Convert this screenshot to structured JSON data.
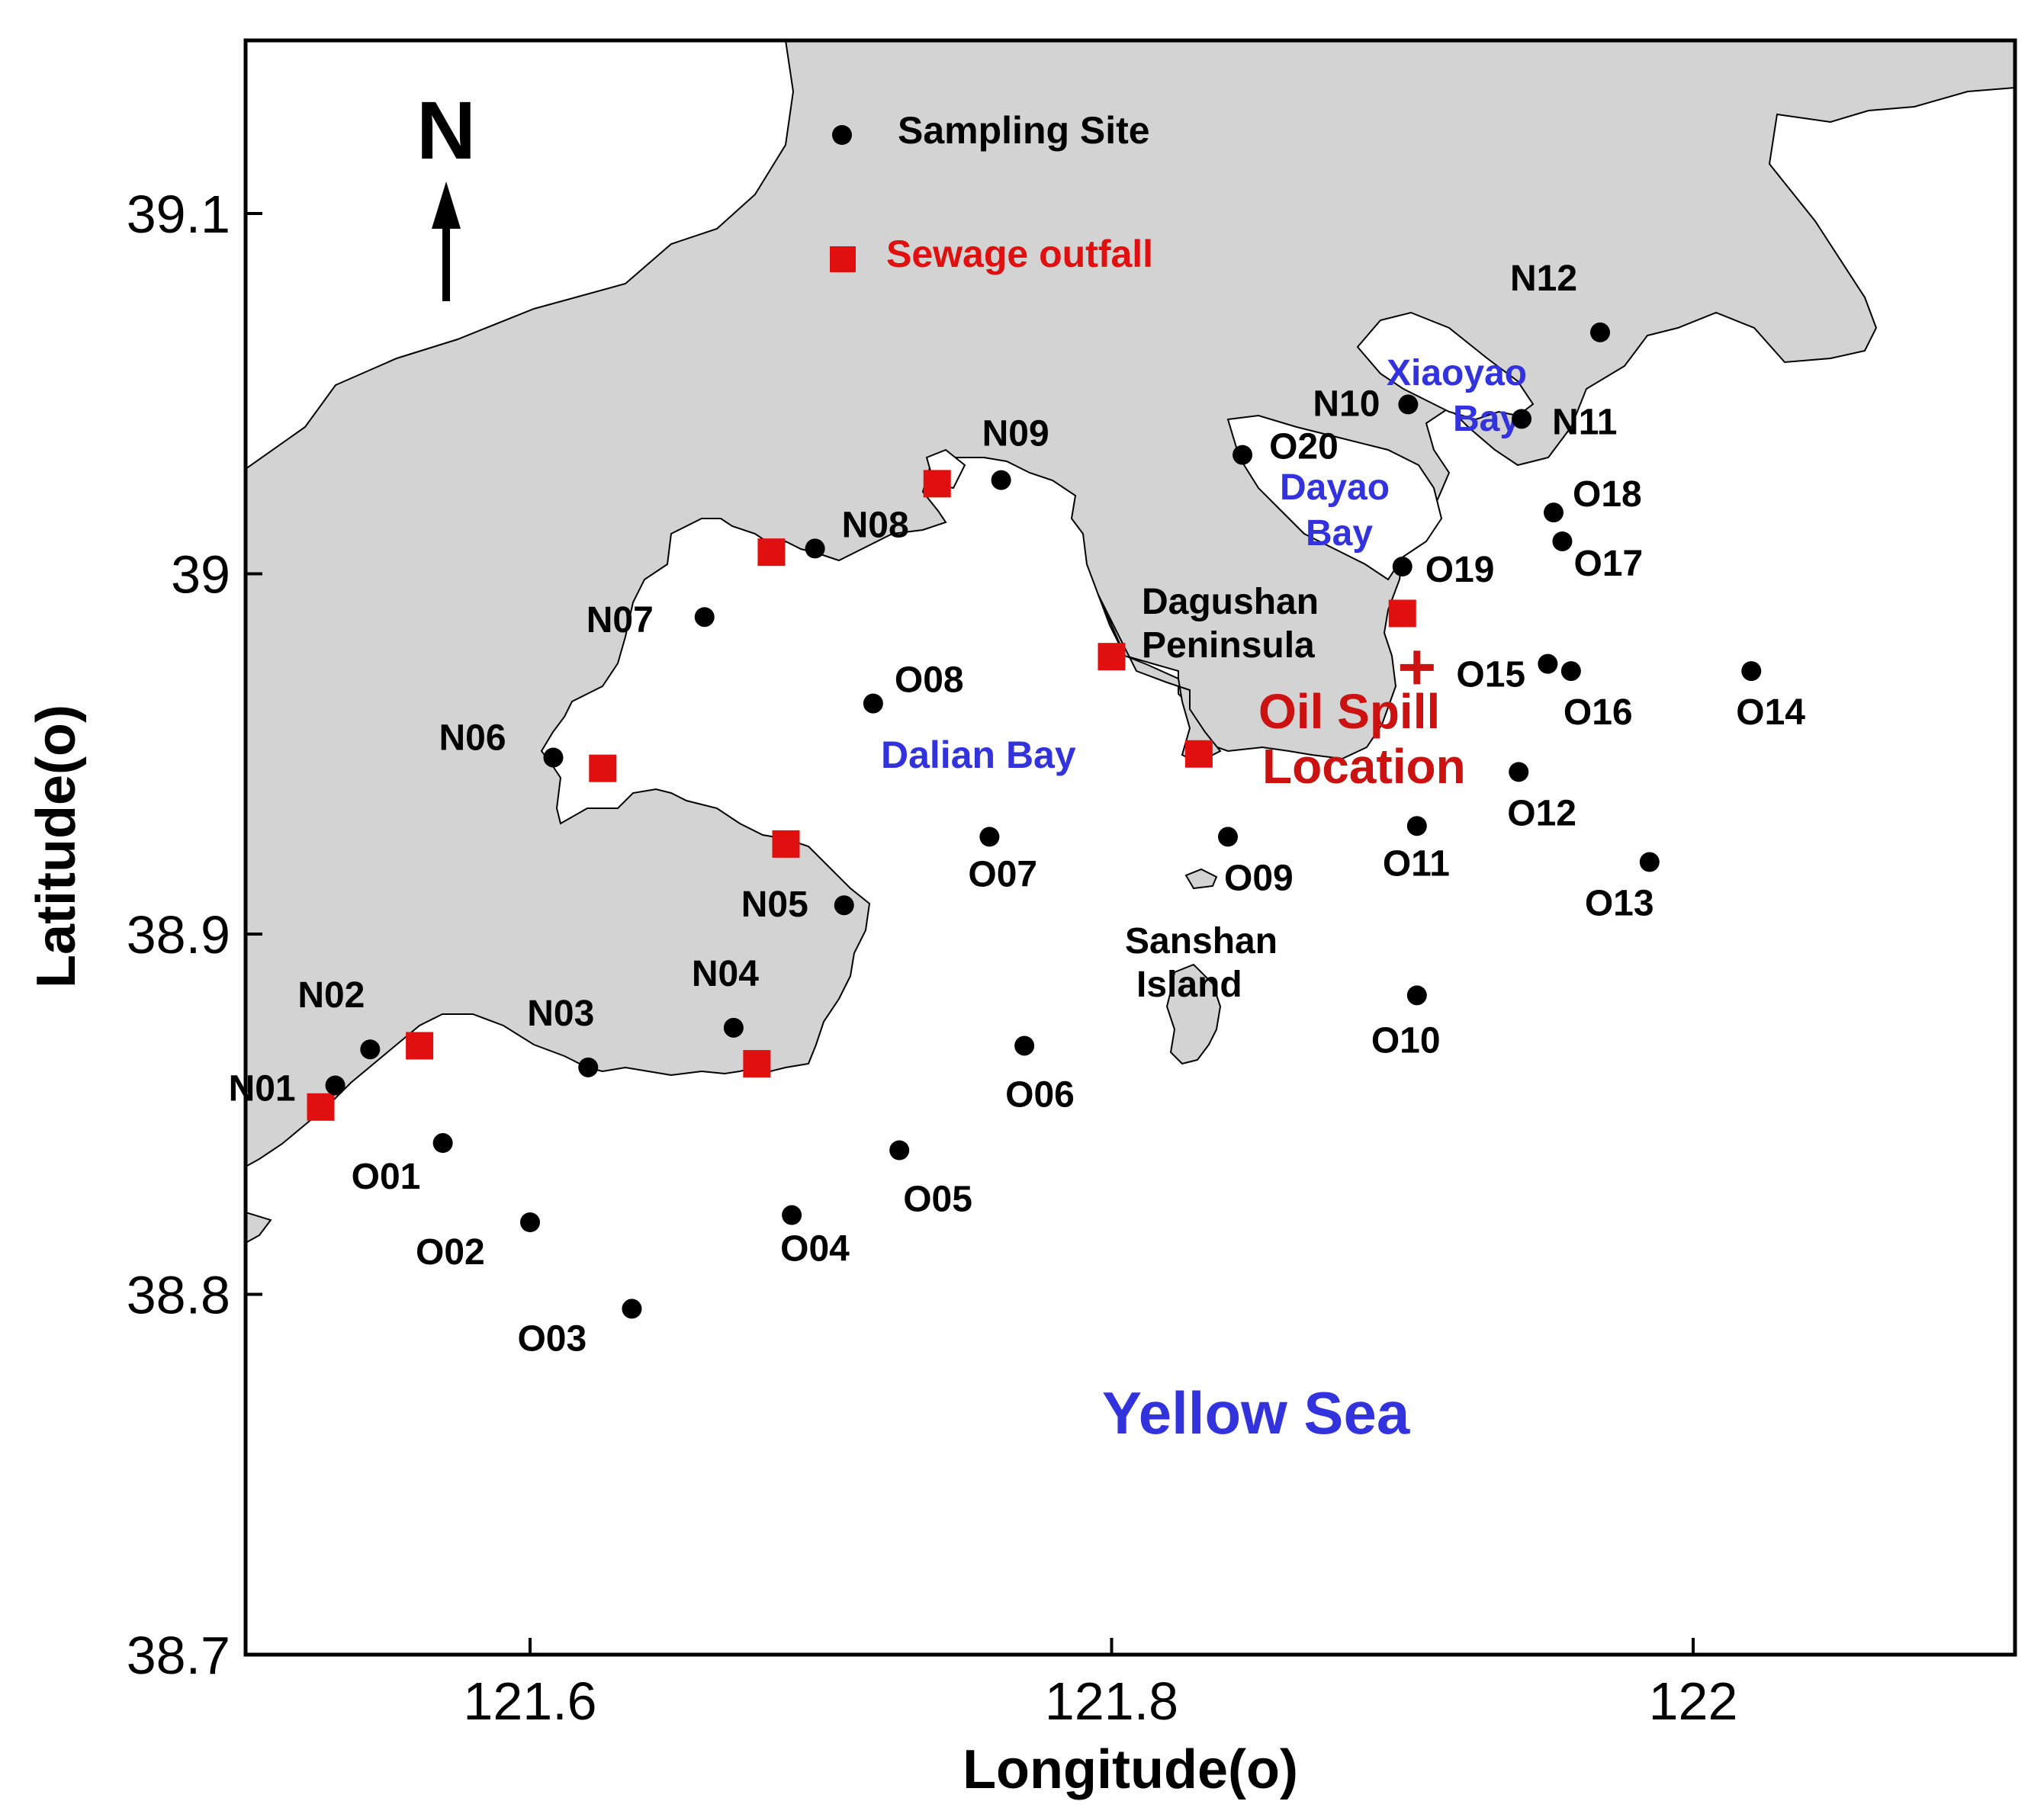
{
  "map": {
    "x_ticks": [
      {
        "value": 121.6,
        "label": "121.6"
      },
      {
        "value": 121.8,
        "label": "121.8"
      },
      {
        "value": 122.0,
        "label": "122"
      }
    ],
    "y_ticks": [
      {
        "value": 38.7,
        "label": "38.7"
      },
      {
        "value": 38.8,
        "label": "38.8"
      },
      {
        "value": 38.9,
        "label": "38.9"
      },
      {
        "value": 39.0,
        "label": "39"
      },
      {
        "value": 39.1,
        "label": "39.1"
      }
    ],
    "xlabel": "Longitude(o)",
    "ylabel": "Latitude(o)",
    "north_label": "N",
    "colors": {
      "land": "#d3d3d3",
      "sea": "#ffffff",
      "site": "#000000",
      "outfall": "#e01010",
      "spill": "#cc1111",
      "place": "#3333dd"
    }
  },
  "legend": {
    "sampling_site": "Sampling Site",
    "sewage_outfall": "Sewage outfall"
  },
  "place_names": {
    "dalian_bay": "Dalian Bay",
    "xiaoyao_bay_1": "Xiaoyao",
    "xiaoyao_bay_2": "Bay",
    "dayao_bay_1": "Dayao",
    "dayao_bay_2": "Bay",
    "yellow_sea": "Yellow Sea",
    "dagushan_1": "Dagushan",
    "dagushan_2": "Peninsula",
    "sanshan_1": "Sanshan",
    "sanshan_2": "Island",
    "oil_spill_1": "Oil Spill",
    "oil_spill_2": "Location"
  },
  "sites": [
    {
      "name": "N01",
      "lon": 121.533,
      "lat": 38.858
    },
    {
      "name": "N02",
      "lon": 121.545,
      "lat": 38.868
    },
    {
      "name": "N03",
      "lon": 121.62,
      "lat": 38.863
    },
    {
      "name": "N04",
      "lon": 121.67,
      "lat": 38.874
    },
    {
      "name": "N05",
      "lon": 121.708,
      "lat": 38.908
    },
    {
      "name": "N06",
      "lon": 121.608,
      "lat": 38.949
    },
    {
      "name": "N07",
      "lon": 121.66,
      "lat": 38.988
    },
    {
      "name": "N08",
      "lon": 121.698,
      "lat": 39.007
    },
    {
      "name": "N09",
      "lon": 121.762,
      "lat": 39.026
    },
    {
      "name": "N10",
      "lon": 121.902,
      "lat": 39.047
    },
    {
      "name": "N11",
      "lon": 121.941,
      "lat": 39.043
    },
    {
      "name": "N12",
      "lon": 121.968,
      "lat": 39.067
    },
    {
      "name": "O01",
      "lon": 121.57,
      "lat": 38.842
    },
    {
      "name": "O02",
      "lon": 121.6,
      "lat": 38.82
    },
    {
      "name": "O03",
      "lon": 121.635,
      "lat": 38.796
    },
    {
      "name": "O04",
      "lon": 121.69,
      "lat": 38.822
    },
    {
      "name": "O05",
      "lon": 121.727,
      "lat": 38.84
    },
    {
      "name": "O06",
      "lon": 121.77,
      "lat": 38.869
    },
    {
      "name": "O07",
      "lon": 121.758,
      "lat": 38.927
    },
    {
      "name": "O08",
      "lon": 121.718,
      "lat": 38.964
    },
    {
      "name": "O09",
      "lon": 121.84,
      "lat": 38.927
    },
    {
      "name": "O10",
      "lon": 121.905,
      "lat": 38.883
    },
    {
      "name": "O11",
      "lon": 121.905,
      "lat": 38.93
    },
    {
      "name": "O12",
      "lon": 121.94,
      "lat": 38.945
    },
    {
      "name": "O13",
      "lon": 121.985,
      "lat": 38.92
    },
    {
      "name": "O14",
      "lon": 122.02,
      "lat": 38.973
    },
    {
      "name": "O15",
      "lon": 121.95,
      "lat": 38.975
    },
    {
      "name": "O16",
      "lon": 121.958,
      "lat": 38.973
    },
    {
      "name": "O17",
      "lon": 121.955,
      "lat": 39.009
    },
    {
      "name": "O18",
      "lon": 121.952,
      "lat": 39.017
    },
    {
      "name": "O19",
      "lon": 121.9,
      "lat": 39.002
    },
    {
      "name": "O20",
      "lon": 121.845,
      "lat": 39.033
    }
  ],
  "outfalls": [
    {
      "lon": 121.528,
      "lat": 38.852
    },
    {
      "lon": 121.562,
      "lat": 38.869
    },
    {
      "lon": 121.678,
      "lat": 38.864
    },
    {
      "lon": 121.625,
      "lat": 38.946
    },
    {
      "lon": 121.688,
      "lat": 38.925
    },
    {
      "lon": 121.683,
      "lat": 39.006
    },
    {
      "lon": 121.74,
      "lat": 39.025
    },
    {
      "lon": 121.8,
      "lat": 38.977
    },
    {
      "lon": 121.83,
      "lat": 38.95
    },
    {
      "lon": 121.9,
      "lat": 38.989
    }
  ],
  "oil_spill": {
    "lon": 121.905,
    "lat": 38.974
  }
}
